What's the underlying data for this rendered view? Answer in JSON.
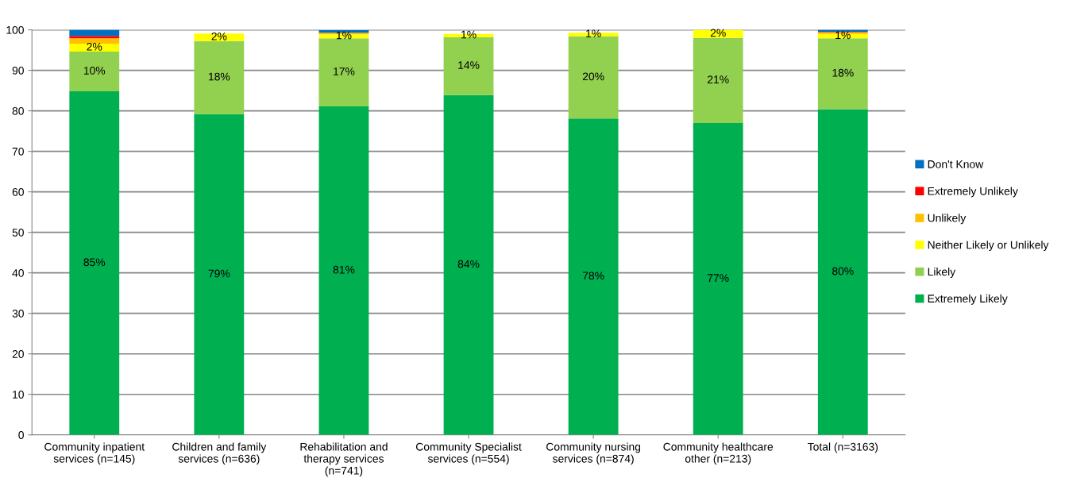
{
  "chart_data": {
    "type": "bar",
    "stacked": true,
    "categories": [
      "Community inpatient\nservices (n=145)",
      "Children and family\nservices (n=636)",
      "Rehabilitation and\ntherapy services\n(n=741)",
      "Community Specialist\nservices (n=554)",
      "Community nursing\nservices (n=874)",
      "Community healthcare\nother (n=213)",
      "Total (n=3163)"
    ],
    "series": [
      {
        "name": "Extremely Likely",
        "color": "#00b050",
        "values": [
          84.8,
          79.2,
          81.1,
          83.9,
          78.1,
          77.0,
          80.4
        ],
        "value_labels": [
          "85%",
          "79%",
          "81%",
          "84%",
          "78%",
          "77%",
          "80%"
        ]
      },
      {
        "name": "Likely",
        "color": "#92d050",
        "values": [
          9.8,
          18.0,
          16.8,
          14.3,
          20.3,
          21.0,
          17.5
        ],
        "value_labels": [
          "10%",
          "18%",
          "17%",
          "14%",
          "20%",
          "21%",
          "18%"
        ]
      },
      {
        "name": "Neither Likely or Unlikely",
        "color": "#ffff00",
        "values": [
          2.0,
          1.9,
          1.0,
          0.8,
          0.9,
          2.0,
          1.1
        ],
        "value_labels": [
          "2%",
          "2%",
          "1%",
          "1%",
          "1%",
          "2%",
          "1%"
        ]
      },
      {
        "name": "Unlikely",
        "color": "#ffc000",
        "values": [
          1.3,
          0,
          0.4,
          0,
          0,
          0,
          0.4
        ]
      },
      {
        "name": "Extremely Unlikely",
        "color": "#ff0000",
        "values": [
          0.6,
          0,
          null,
          0,
          0,
          0,
          0.1
        ]
      },
      {
        "name": "Don't Know",
        "color": "#0070c0",
        "values": [
          1.5,
          0,
          0.6,
          0,
          0,
          0,
          0.5
        ]
      }
    ],
    "ylim": [
      0,
      100
    ],
    "yticks": [
      0,
      10,
      20,
      30,
      40,
      50,
      60,
      70,
      80,
      90,
      100
    ],
    "grid": "y",
    "legend": "right"
  }
}
